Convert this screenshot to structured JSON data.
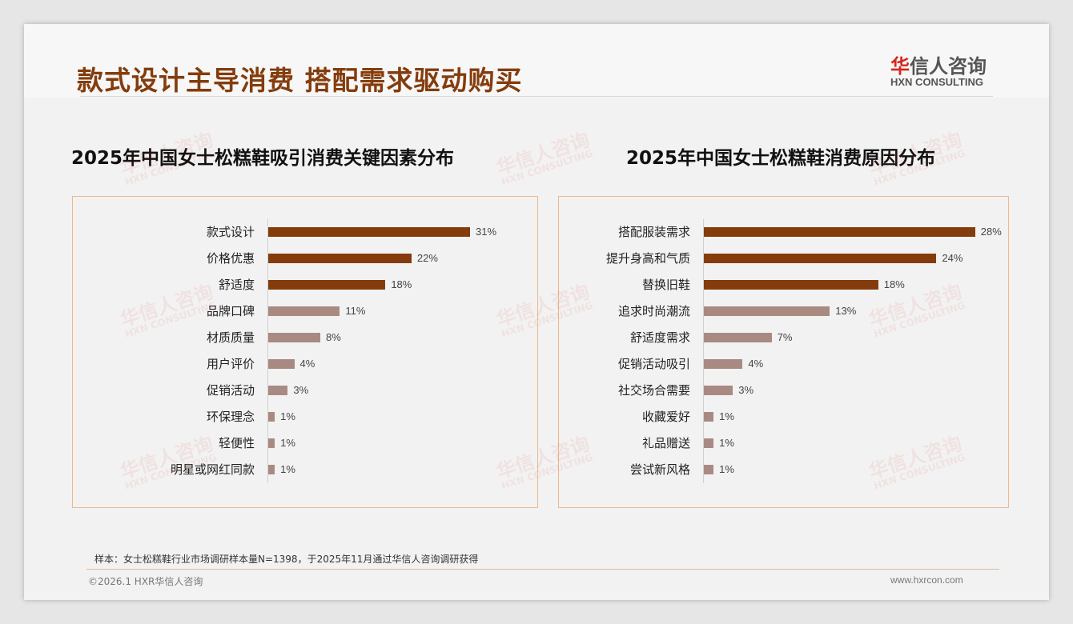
{
  "header": {
    "title": "款式设计主导消费 搭配需求驱动购买",
    "logo_cn_mark": "华",
    "logo_cn_rest": "信人咨询",
    "logo_en": "HXN CONSULTING"
  },
  "colors": {
    "top3": "#843c0c",
    "rest": "#a98a82",
    "border": "#f0b88a"
  },
  "chart_data": [
    {
      "type": "bar",
      "orientation": "horizontal",
      "title": "2025年中国女士松糕鞋吸引消费关键因素分布",
      "categories": [
        "款式设计",
        "价格优惠",
        "舒适度",
        "品牌口碑",
        "材质质量",
        "用户评价",
        "促销活动",
        "环保理念",
        "轻便性",
        "明星或网红同款"
      ],
      "values": [
        31,
        22,
        18,
        11,
        8,
        4,
        3,
        1,
        1,
        1
      ],
      "labels": [
        "31%",
        "22%",
        "18%",
        "11%",
        "8%",
        "4%",
        "3%",
        "1%",
        "1%",
        "1%"
      ],
      "unit": "%",
      "xlim": [
        0,
        31
      ]
    },
    {
      "type": "bar",
      "orientation": "horizontal",
      "title": "2025年中国女士松糕鞋消费原因分布",
      "categories": [
        "搭配服装需求",
        "提升身高和气质",
        "替换旧鞋",
        "追求时尚潮流",
        "舒适度需求",
        "促销活动吸引",
        "社交场合需要",
        "收藏爱好",
        "礼品赠送",
        "尝试新风格"
      ],
      "values": [
        28,
        24,
        18,
        13,
        7,
        4,
        3,
        1,
        1,
        1
      ],
      "labels": [
        "28%",
        "24%",
        "18%",
        "13%",
        "7%",
        "4%",
        "3%",
        "1%",
        "1%",
        "1%"
      ],
      "unit": "%",
      "xlim": [
        0,
        28
      ]
    }
  ],
  "footer": {
    "note": "样本：女士松糕鞋行业市场调研样本量N=1398，于2025年11月通过华信人咨询调研获得",
    "copyright": "©2026.1 HXR华信人咨询",
    "url": "www.hxrcon.com"
  }
}
